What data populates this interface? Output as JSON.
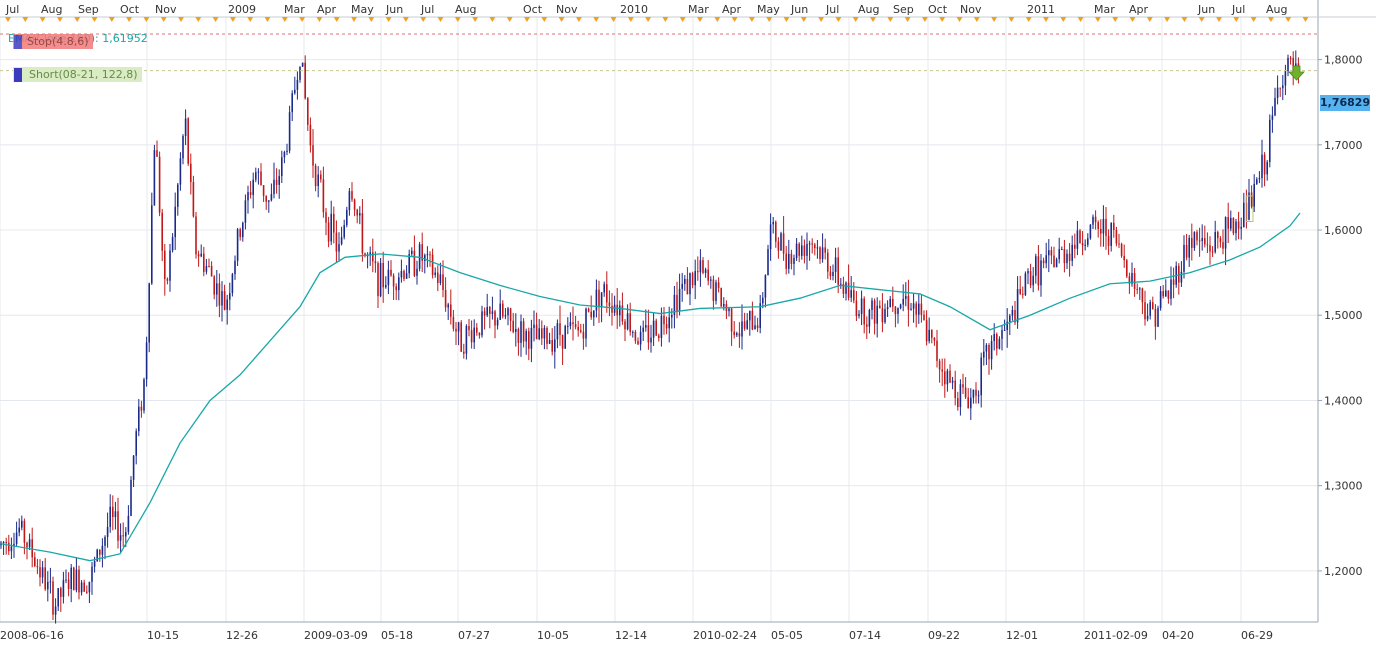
{
  "chart_data": {
    "type": "candlestick",
    "instrument_indicator": "EMA(Close,150)",
    "ema_label": "EMA(Close,150): 1,61952",
    "stop_label": "Stop(4.8,6)",
    "short_label": "Short(08-21, 122,8)",
    "last_price_label": "1,76829",
    "y_ticks": [
      "1,2000",
      "1,3000",
      "1,4000",
      "1,5000",
      "1,6000",
      "1,7000",
      "1,8000"
    ],
    "y_tick_values": [
      1.2,
      1.3,
      1.4,
      1.5,
      1.6,
      1.7,
      1.8
    ],
    "ylim": [
      1.14,
      1.85
    ],
    "top_month_labels": [
      "Jul",
      "Aug",
      "Sep",
      "Oct",
      "Nov",
      "2009",
      "Mar",
      "Apr",
      "May",
      "Jun",
      "Jul",
      "Aug",
      "Oct",
      "Nov",
      "2010",
      "Mar",
      "Apr",
      "May",
      "Jun",
      "Jul",
      "Aug",
      "Sep",
      "Oct",
      "Nov",
      "2011",
      "Mar",
      "Apr",
      "Jun",
      "Jul",
      "Aug"
    ],
    "bottom_date_labels": [
      "2008-06-16",
      "10-15",
      "12-26",
      "2009-03-09",
      "05-18",
      "07-27",
      "10-05",
      "12-14",
      "2010-02-24",
      "05-05",
      "07-14",
      "09-22",
      "12-01",
      "2011-02-09",
      "04-20",
      "06-29"
    ],
    "stop_level": 1.83,
    "short_level": 1.787,
    "price_path": [
      [
        0,
        1.23
      ],
      [
        20,
        1.25
      ],
      [
        40,
        1.2
      ],
      [
        55,
        1.16
      ],
      [
        70,
        1.19
      ],
      [
        90,
        1.19
      ],
      [
        110,
        1.26
      ],
      [
        125,
        1.24
      ],
      [
        135,
        1.35
      ],
      [
        145,
        1.43
      ],
      [
        155,
        1.72
      ],
      [
        165,
        1.52
      ],
      [
        175,
        1.62
      ],
      [
        185,
        1.73
      ],
      [
        195,
        1.58
      ],
      [
        210,
        1.55
      ],
      [
        225,
        1.51
      ],
      [
        240,
        1.6
      ],
      [
        255,
        1.67
      ],
      [
        270,
        1.63
      ],
      [
        285,
        1.69
      ],
      [
        300,
        1.81
      ],
      [
        310,
        1.7
      ],
      [
        325,
        1.62
      ],
      [
        340,
        1.57
      ],
      [
        350,
        1.66
      ],
      [
        365,
        1.57
      ],
      [
        380,
        1.54
      ],
      [
        400,
        1.55
      ],
      [
        420,
        1.57
      ],
      [
        440,
        1.54
      ],
      [
        460,
        1.47
      ],
      [
        480,
        1.49
      ],
      [
        500,
        1.5
      ],
      [
        520,
        1.48
      ],
      [
        540,
        1.47
      ],
      [
        560,
        1.48
      ],
      [
        580,
        1.48
      ],
      [
        600,
        1.53
      ],
      [
        620,
        1.51
      ],
      [
        640,
        1.47
      ],
      [
        660,
        1.49
      ],
      [
        680,
        1.53
      ],
      [
        700,
        1.55
      ],
      [
        720,
        1.52
      ],
      [
        740,
        1.48
      ],
      [
        760,
        1.5
      ],
      [
        770,
        1.6
      ],
      [
        790,
        1.57
      ],
      [
        810,
        1.59
      ],
      [
        830,
        1.56
      ],
      [
        850,
        1.52
      ],
      [
        870,
        1.5
      ],
      [
        890,
        1.52
      ],
      [
        910,
        1.52
      ],
      [
        930,
        1.47
      ],
      [
        950,
        1.42
      ],
      [
        970,
        1.4
      ],
      [
        990,
        1.46
      ],
      [
        1010,
        1.49
      ],
      [
        1030,
        1.55
      ],
      [
        1050,
        1.56
      ],
      [
        1070,
        1.58
      ],
      [
        1090,
        1.6
      ],
      [
        1110,
        1.6
      ],
      [
        1130,
        1.55
      ],
      [
        1150,
        1.5
      ],
      [
        1170,
        1.53
      ],
      [
        1190,
        1.59
      ],
      [
        1210,
        1.58
      ],
      [
        1230,
        1.6
      ],
      [
        1250,
        1.63
      ],
      [
        1265,
        1.68
      ],
      [
        1280,
        1.78
      ],
      [
        1290,
        1.79
      ],
      [
        1300,
        1.77
      ]
    ],
    "ema_path": [
      [
        0,
        1.232
      ],
      [
        50,
        1.222
      ],
      [
        90,
        1.212
      ],
      [
        120,
        1.22
      ],
      [
        150,
        1.28
      ],
      [
        180,
        1.35
      ],
      [
        210,
        1.4
      ],
      [
        240,
        1.43
      ],
      [
        270,
        1.47
      ],
      [
        300,
        1.51
      ],
      [
        320,
        1.55
      ],
      [
        345,
        1.568
      ],
      [
        380,
        1.572
      ],
      [
        420,
        1.568
      ],
      [
        460,
        1.55
      ],
      [
        500,
        1.535
      ],
      [
        540,
        1.522
      ],
      [
        580,
        1.512
      ],
      [
        620,
        1.508
      ],
      [
        660,
        1.502
      ],
      [
        700,
        1.508
      ],
      [
        760,
        1.51
      ],
      [
        800,
        1.52
      ],
      [
        840,
        1.535
      ],
      [
        880,
        1.53
      ],
      [
        920,
        1.525
      ],
      [
        950,
        1.51
      ],
      [
        990,
        1.483
      ],
      [
        1030,
        1.5
      ],
      [
        1070,
        1.52
      ],
      [
        1110,
        1.537
      ],
      [
        1150,
        1.54
      ],
      [
        1190,
        1.55
      ],
      [
        1230,
        1.565
      ],
      [
        1260,
        1.58
      ],
      [
        1290,
        1.605
      ],
      [
        1300,
        1.62
      ]
    ]
  },
  "colors": {
    "up_candle": "#1a2a8a",
    "down_candle": "#c01818",
    "ema": "#1aa7a7",
    "grid": "#e4e8ee",
    "stop_line": "#e07070",
    "short_line": "#c8c890",
    "price_tag_bg": "#57b3f0",
    "marker_orange": "#f0a020",
    "signal_green": "#70b030"
  }
}
